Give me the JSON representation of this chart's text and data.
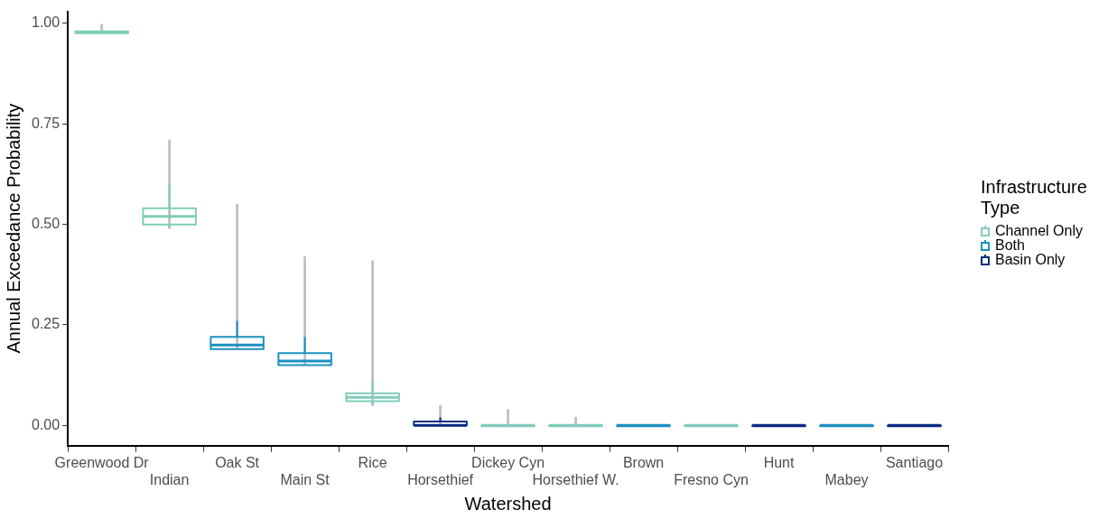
{
  "chart_data": {
    "type": "box",
    "xlabel": "Watershed",
    "ylabel": "Annual Exceedance Probability",
    "legend_title": "Infrastructure Type",
    "categories": [
      "Greenwood Dr",
      "Indian",
      "Oak St",
      "Main St",
      "Rice",
      "Horsethief",
      "Dickey Cyn",
      "Horsethief W.",
      "Brown",
      "Fresno Cyn",
      "Hunt",
      "Mabey",
      "Santiago"
    ],
    "ylim": [
      -0.05,
      1.03
    ],
    "yticks": [
      {
        "value": 0,
        "label": "0.00"
      },
      {
        "value": 0.25,
        "label": "0.25"
      },
      {
        "value": 0.5,
        "label": "0.50"
      },
      {
        "value": 0.75,
        "label": "0.75"
      },
      {
        "value": 1,
        "label": "1.00"
      }
    ],
    "grid": false,
    "legend": "right",
    "series": [
      {
        "type": "bar",
        "color": "#bdbdbd",
        "base": [
          0.976,
          0.49,
          0.19,
          0.15,
          0.05,
          0,
          0,
          0,
          null,
          null,
          null,
          null,
          null
        ],
        "values": [
          0.022,
          0.22,
          0.36,
          0.27,
          0.36,
          0.05,
          0.04,
          0.02,
          null,
          null,
          null,
          null,
          null
        ]
      },
      {
        "name": "Channel Only",
        "color": "#7fcdbb",
        "boxes": [
          {
            "low": 0.976,
            "q1": 0.976,
            "median": 0.978,
            "q3": 0.98,
            "high": 0.98
          },
          {
            "low": 0.49,
            "q1": 0.5,
            "median": 0.52,
            "q3": 0.54,
            "high": 0.6
          },
          null,
          null,
          {
            "low": 0.05,
            "q1": 0.06,
            "median": 0.07,
            "q3": 0.08,
            "high": 0.11
          },
          null,
          {
            "low": 0,
            "q1": 0,
            "median": 0,
            "q3": 0,
            "high": 0
          },
          {
            "low": 0,
            "q1": 0,
            "median": 0,
            "q3": 0,
            "high": 0
          },
          null,
          {
            "low": 0,
            "q1": 0,
            "median": 0,
            "q3": 0,
            "high": 0
          },
          null,
          null,
          null
        ]
      },
      {
        "name": "Both",
        "color": "#1d91c0",
        "boxes": [
          null,
          null,
          {
            "low": 0.19,
            "q1": 0.19,
            "median": 0.2,
            "q3": 0.22,
            "high": 0.26
          },
          {
            "low": 0.15,
            "q1": 0.15,
            "median": 0.16,
            "q3": 0.18,
            "high": 0.22
          },
          null,
          null,
          null,
          null,
          {
            "low": 0,
            "q1": 0,
            "median": 0,
            "q3": 0,
            "high": 0
          },
          null,
          null,
          {
            "low": 0,
            "q1": 0,
            "median": 0,
            "q3": 0,
            "high": 0
          },
          null
        ]
      },
      {
        "name": "Basin Only",
        "color": "#0c2c84",
        "boxes": [
          null,
          null,
          null,
          null,
          null,
          {
            "low": 0,
            "q1": 0,
            "median": 0,
            "q3": 0.01,
            "high": 0.02
          },
          null,
          null,
          null,
          null,
          {
            "low": 0,
            "q1": 0,
            "median": 0,
            "q3": 0,
            "high": 0
          },
          null,
          {
            "low": 0,
            "q1": 0,
            "median": 0,
            "q3": 0,
            "high": 0
          }
        ]
      }
    ]
  }
}
